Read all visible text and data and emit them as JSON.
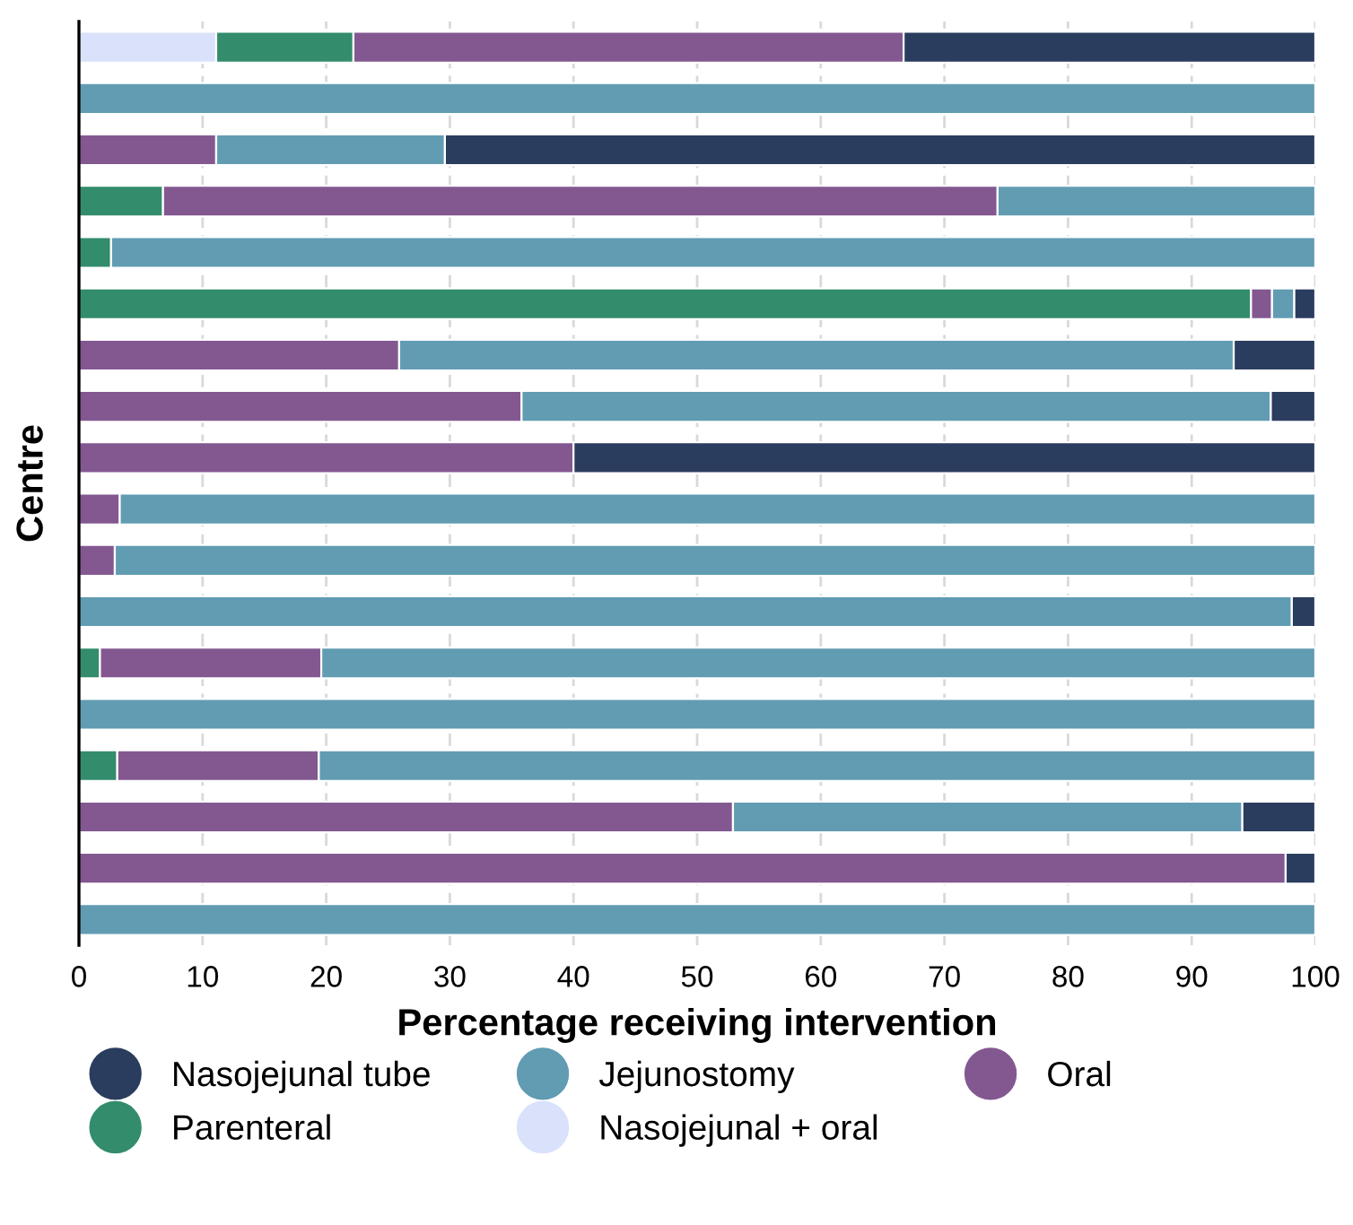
{
  "chart_data": {
    "type": "bar",
    "orientation": "horizontal",
    "stacked": true,
    "xlabel": "Percentage receiving intervention",
    "ylabel": "Centre",
    "categories": [
      null,
      null,
      null,
      null,
      null,
      null,
      null,
      null,
      null,
      null,
      null,
      null,
      null,
      null,
      null,
      null,
      null,
      null
    ],
    "series": [
      {
        "name": "Nasojejunal + oral",
        "color": "#d9e1fb",
        "values": [
          11.1,
          0,
          0,
          0,
          0,
          0,
          0,
          0,
          0,
          0,
          0,
          0,
          0,
          0,
          0,
          0,
          0,
          0
        ]
      },
      {
        "name": "Parenteral",
        "color": "#338c6c",
        "values": [
          11.1,
          0,
          0,
          6.8,
          2.6,
          94.8,
          0,
          0,
          0,
          0,
          0,
          0,
          1.7,
          0,
          3.1,
          0,
          0,
          0
        ]
      },
      {
        "name": "Oral",
        "color": "#835891",
        "values": [
          44.5,
          0,
          11.1,
          67.5,
          0,
          1.7,
          25.9,
          35.8,
          40,
          3.3,
          2.9,
          0,
          17.9,
          0,
          16.3,
          52.9,
          97.6,
          0
        ]
      },
      {
        "name": "Jejunostomy",
        "color": "#619cb3",
        "values": [
          0,
          100,
          18.5,
          25.7,
          97.4,
          1.8,
          67.5,
          60.6,
          0,
          96.7,
          97.1,
          98.1,
          80.4,
          100,
          80.6,
          41.2,
          0,
          100
        ]
      },
      {
        "name": "Nasojejunal tube",
        "color": "#2b3d5e",
        "values": [
          33.3,
          0,
          70.4,
          0,
          0,
          1.7,
          6.6,
          3.6,
          60,
          0,
          0,
          1.9,
          0,
          0,
          0,
          5.9,
          2.4,
          0
        ]
      }
    ],
    "xlim": [
      0,
      100
    ],
    "xticks": [
      0,
      10,
      20,
      30,
      40,
      50,
      60,
      70,
      80,
      90,
      100
    ],
    "grid": "x",
    "legend": "bottom"
  }
}
